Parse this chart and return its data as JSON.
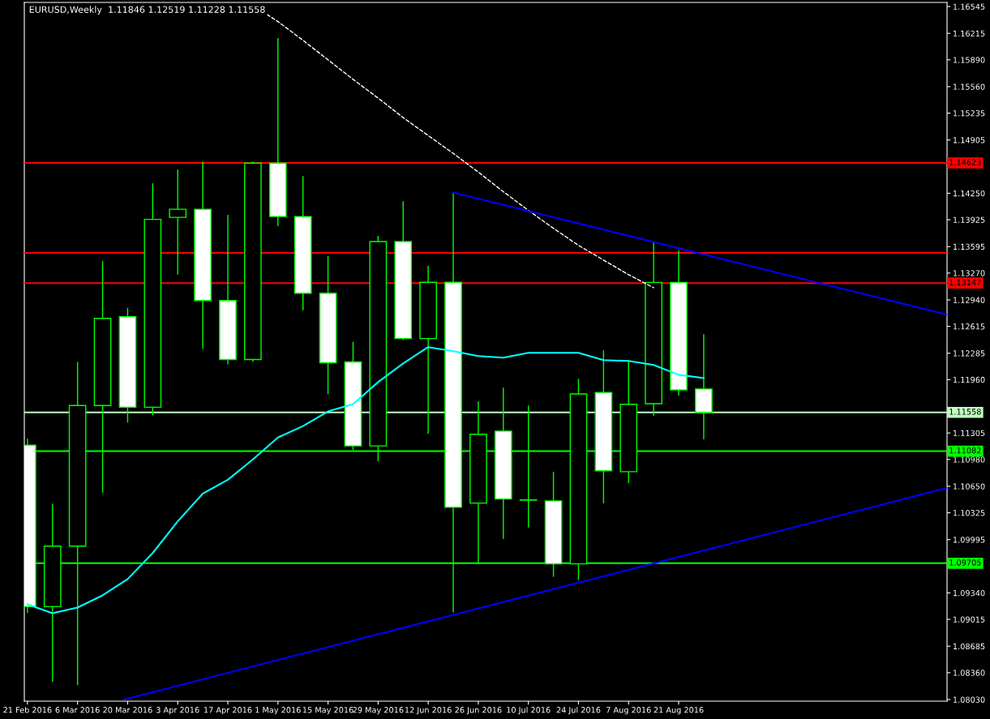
{
  "chart_data": {
    "type": "candlestick",
    "title": "EURUSD,Weekly  1.11846 1.12519 1.11228 1.11558",
    "x": [
      "2016-02-21",
      "2016-02-28",
      "2016-03-06",
      "2016-03-13",
      "2016-03-20",
      "2016-03-27",
      "2016-04-03",
      "2016-04-10",
      "2016-04-17",
      "2016-04-24",
      "2016-05-01",
      "2016-05-08",
      "2016-05-15",
      "2016-05-22",
      "2016-05-29",
      "2016-06-05",
      "2016-06-12",
      "2016-06-19",
      "2016-06-26",
      "2016-07-03",
      "2016-07-10",
      "2016-07-17",
      "2016-07-24",
      "2016-07-31",
      "2016-08-07",
      "2016-08-14",
      "2016-08-21",
      "2016-08-28"
    ],
    "series": [
      {
        "color": "#00ff00",
        "ohlc": [
          [
            1.11156,
            1.11235,
            1.09092,
            1.09171
          ],
          [
            1.09171,
            1.10435,
            1.08248,
            1.09915
          ],
          [
            1.09915,
            1.12178,
            1.08208,
            1.11642
          ],
          [
            1.11642,
            1.13419,
            1.1057,
            1.12714
          ],
          [
            1.12734,
            1.12843,
            1.11434,
            1.11622
          ],
          [
            1.11622,
            1.14372,
            1.11523,
            1.1393
          ],
          [
            1.13955,
            1.1454,
            1.1325,
            1.14054
          ],
          [
            1.14054,
            1.1464,
            1.12337,
            1.12933
          ],
          [
            1.12933,
            1.13985,
            1.12148,
            1.12208
          ],
          [
            1.12208,
            1.1464,
            1.12178,
            1.1462
          ],
          [
            1.1462,
            1.16158,
            1.13845,
            1.13965
          ],
          [
            1.13965,
            1.14461,
            1.12813,
            1.13022
          ],
          [
            1.13022,
            1.13478,
            1.11781,
            1.12168
          ],
          [
            1.12178,
            1.12426,
            1.11096,
            1.11146
          ],
          [
            1.11146,
            1.13726,
            1.10957,
            1.13657
          ],
          [
            1.13657,
            1.14153,
            1.12446,
            1.12466
          ],
          [
            1.12466,
            1.13359,
            1.11295,
            1.13156
          ],
          [
            1.13156,
            1.14262,
            1.09101,
            1.10392
          ],
          [
            1.10444,
            1.11692,
            1.09697,
            1.11289
          ],
          [
            1.11328,
            1.11861,
            1.10005,
            1.10494
          ],
          [
            1.10483,
            1.11642,
            1.10144,
            1.1048
          ],
          [
            1.10471,
            1.10828,
            1.09538,
            1.09697
          ],
          [
            1.09697,
            1.1197,
            1.09499,
            1.11785
          ],
          [
            1.11803,
            1.12321,
            1.10441,
            1.10841
          ],
          [
            1.1083,
            1.12198,
            1.1069,
            1.11657
          ],
          [
            1.11665,
            1.13652,
            1.11515,
            1.13155
          ],
          [
            1.13155,
            1.13548,
            1.11764,
            1.11835
          ],
          [
            1.11846,
            1.12519,
            1.11228,
            1.11558
          ]
        ]
      },
      {
        "type": "line",
        "color": "#00ffff",
        "values": [
          1.092,
          1.0909,
          1.0916,
          1.0931,
          1.0951,
          1.0983,
          1.1022,
          1.1056,
          1.1073,
          1.1098,
          1.1125,
          1.1139,
          1.1157,
          1.1166,
          1.1193,
          1.1216,
          1.1236,
          1.1231,
          1.1225,
          1.1223,
          1.1229,
          1.1229,
          1.1229,
          1.122,
          1.1219,
          1.1214,
          1.1202,
          1.1198
        ]
      },
      {
        "type": "line",
        "color": "#ffffff",
        "line_style": "dashed",
        "x": [
          "2016-04-24",
          "2016-05-01",
          "2016-05-08",
          "2016-05-15",
          "2016-05-22",
          "2016-05-29",
          "2016-06-05",
          "2016-06-12",
          "2016-06-19",
          "2016-06-26",
          "2016-07-03",
          "2016-07-10",
          "2016-07-17",
          "2016-07-24",
          "2016-07-31",
          "2016-08-07",
          "2016-08-14"
        ],
        "values": [
          1.1656,
          1.1636,
          1.1613,
          1.1589,
          1.1565,
          1.1542,
          1.1518,
          1.1496,
          1.1474,
          1.1451,
          1.1427,
          1.1404,
          1.1382,
          1.1361,
          1.1343,
          1.1325,
          1.1309
        ]
      },
      {
        "type": "line",
        "color": "#0000ff",
        "x": [
          "2016-06-19",
          "2016-11-04"
        ],
        "values": [
          1.1426,
          1.1276
        ]
      },
      {
        "type": "line",
        "color": "#0000ff",
        "x": [
          "2016-03-19",
          "2016-11-04"
        ],
        "values": [
          1.0803,
          1.1063
        ]
      }
    ],
    "xlim": [
      "2016-02-20T03:00",
      "2016-11-04"
    ],
    "xticks": [
      {
        "value": "2016-02-21",
        "label": "21 Feb 2016"
      },
      {
        "value": "2016-03-06",
        "label": "6 Mar 2016"
      },
      {
        "value": "2016-03-20",
        "label": "20 Mar 2016"
      },
      {
        "value": "2016-04-03",
        "label": "3 Apr 2016"
      },
      {
        "value": "2016-04-17",
        "label": "17 Apr 2016"
      },
      {
        "value": "2016-05-01",
        "label": "1 May 2016"
      },
      {
        "value": "2016-05-15",
        "label": "15 May 2016"
      },
      {
        "value": "2016-05-29",
        "label": "29 May 2016"
      },
      {
        "value": "2016-06-12",
        "label": "12 Jun 2016"
      },
      {
        "value": "2016-06-26",
        "label": "26 Jun 2016"
      },
      {
        "value": "2016-07-10",
        "label": "10 Jul 2016"
      },
      {
        "value": "2016-07-24",
        "label": "24 Jul 2016"
      },
      {
        "value": "2016-08-07",
        "label": "7 Aug 2016"
      },
      {
        "value": "2016-08-21",
        "label": "21 Aug 2016"
      }
    ],
    "ylim": [
      1.0801,
      1.16595
    ],
    "yticks": [
      {
        "value": 1.16545,
        "label": "1.16545"
      },
      {
        "value": 1.16215,
        "label": "1.16215"
      },
      {
        "value": 1.1589,
        "label": "1.15890"
      },
      {
        "value": 1.1556,
        "label": "1.15560"
      },
      {
        "value": 1.15235,
        "label": "1.15235"
      },
      {
        "value": 1.14905,
        "label": "1.14905"
      },
      {
        "value": 1.1425,
        "label": "1.14250"
      },
      {
        "value": 1.13925,
        "label": "1.13925"
      },
      {
        "value": 1.13595,
        "label": "1.13595"
      },
      {
        "value": 1.1327,
        "label": "1.13270"
      },
      {
        "value": 1.1294,
        "label": "1.12940"
      },
      {
        "value": 1.12615,
        "label": "1.12615"
      },
      {
        "value": 1.12285,
        "label": "1.12285"
      },
      {
        "value": 1.1196,
        "label": "1.11960"
      },
      {
        "value": 1.11305,
        "label": "1.11305"
      },
      {
        "value": 1.1098,
        "label": "1.10980"
      },
      {
        "value": 1.1065,
        "label": "1.10650"
      },
      {
        "value": 1.10325,
        "label": "1.10325"
      },
      {
        "value": 1.09995,
        "label": "1.09995"
      },
      {
        "value": 1.0934,
        "label": "1.09340"
      },
      {
        "value": 1.09015,
        "label": "1.09015"
      },
      {
        "value": 1.08685,
        "label": "1.08685"
      },
      {
        "value": 1.0836,
        "label": "1.08360"
      },
      {
        "value": 1.0803,
        "label": "1.08030"
      }
    ],
    "ref_lines": [
      {
        "axis": "y",
        "value": 1.14623,
        "label": "1.14623",
        "color": "#ff0000"
      },
      {
        "axis": "y",
        "value": 1.13518,
        "color": "#ff0000"
      },
      {
        "axis": "y",
        "value": 1.13147,
        "label": "1.13147",
        "color": "#ff0000"
      },
      {
        "axis": "y",
        "value": 1.11558,
        "label": "1.11558",
        "color": "#c0ffc0"
      },
      {
        "axis": "y",
        "value": 1.11082,
        "label": "1.11082",
        "color": "#00ff00"
      },
      {
        "axis": "y",
        "value": 1.09705,
        "label": "1.09705",
        "color": "#00ff00"
      }
    ],
    "grid": false,
    "legend": false
  }
}
